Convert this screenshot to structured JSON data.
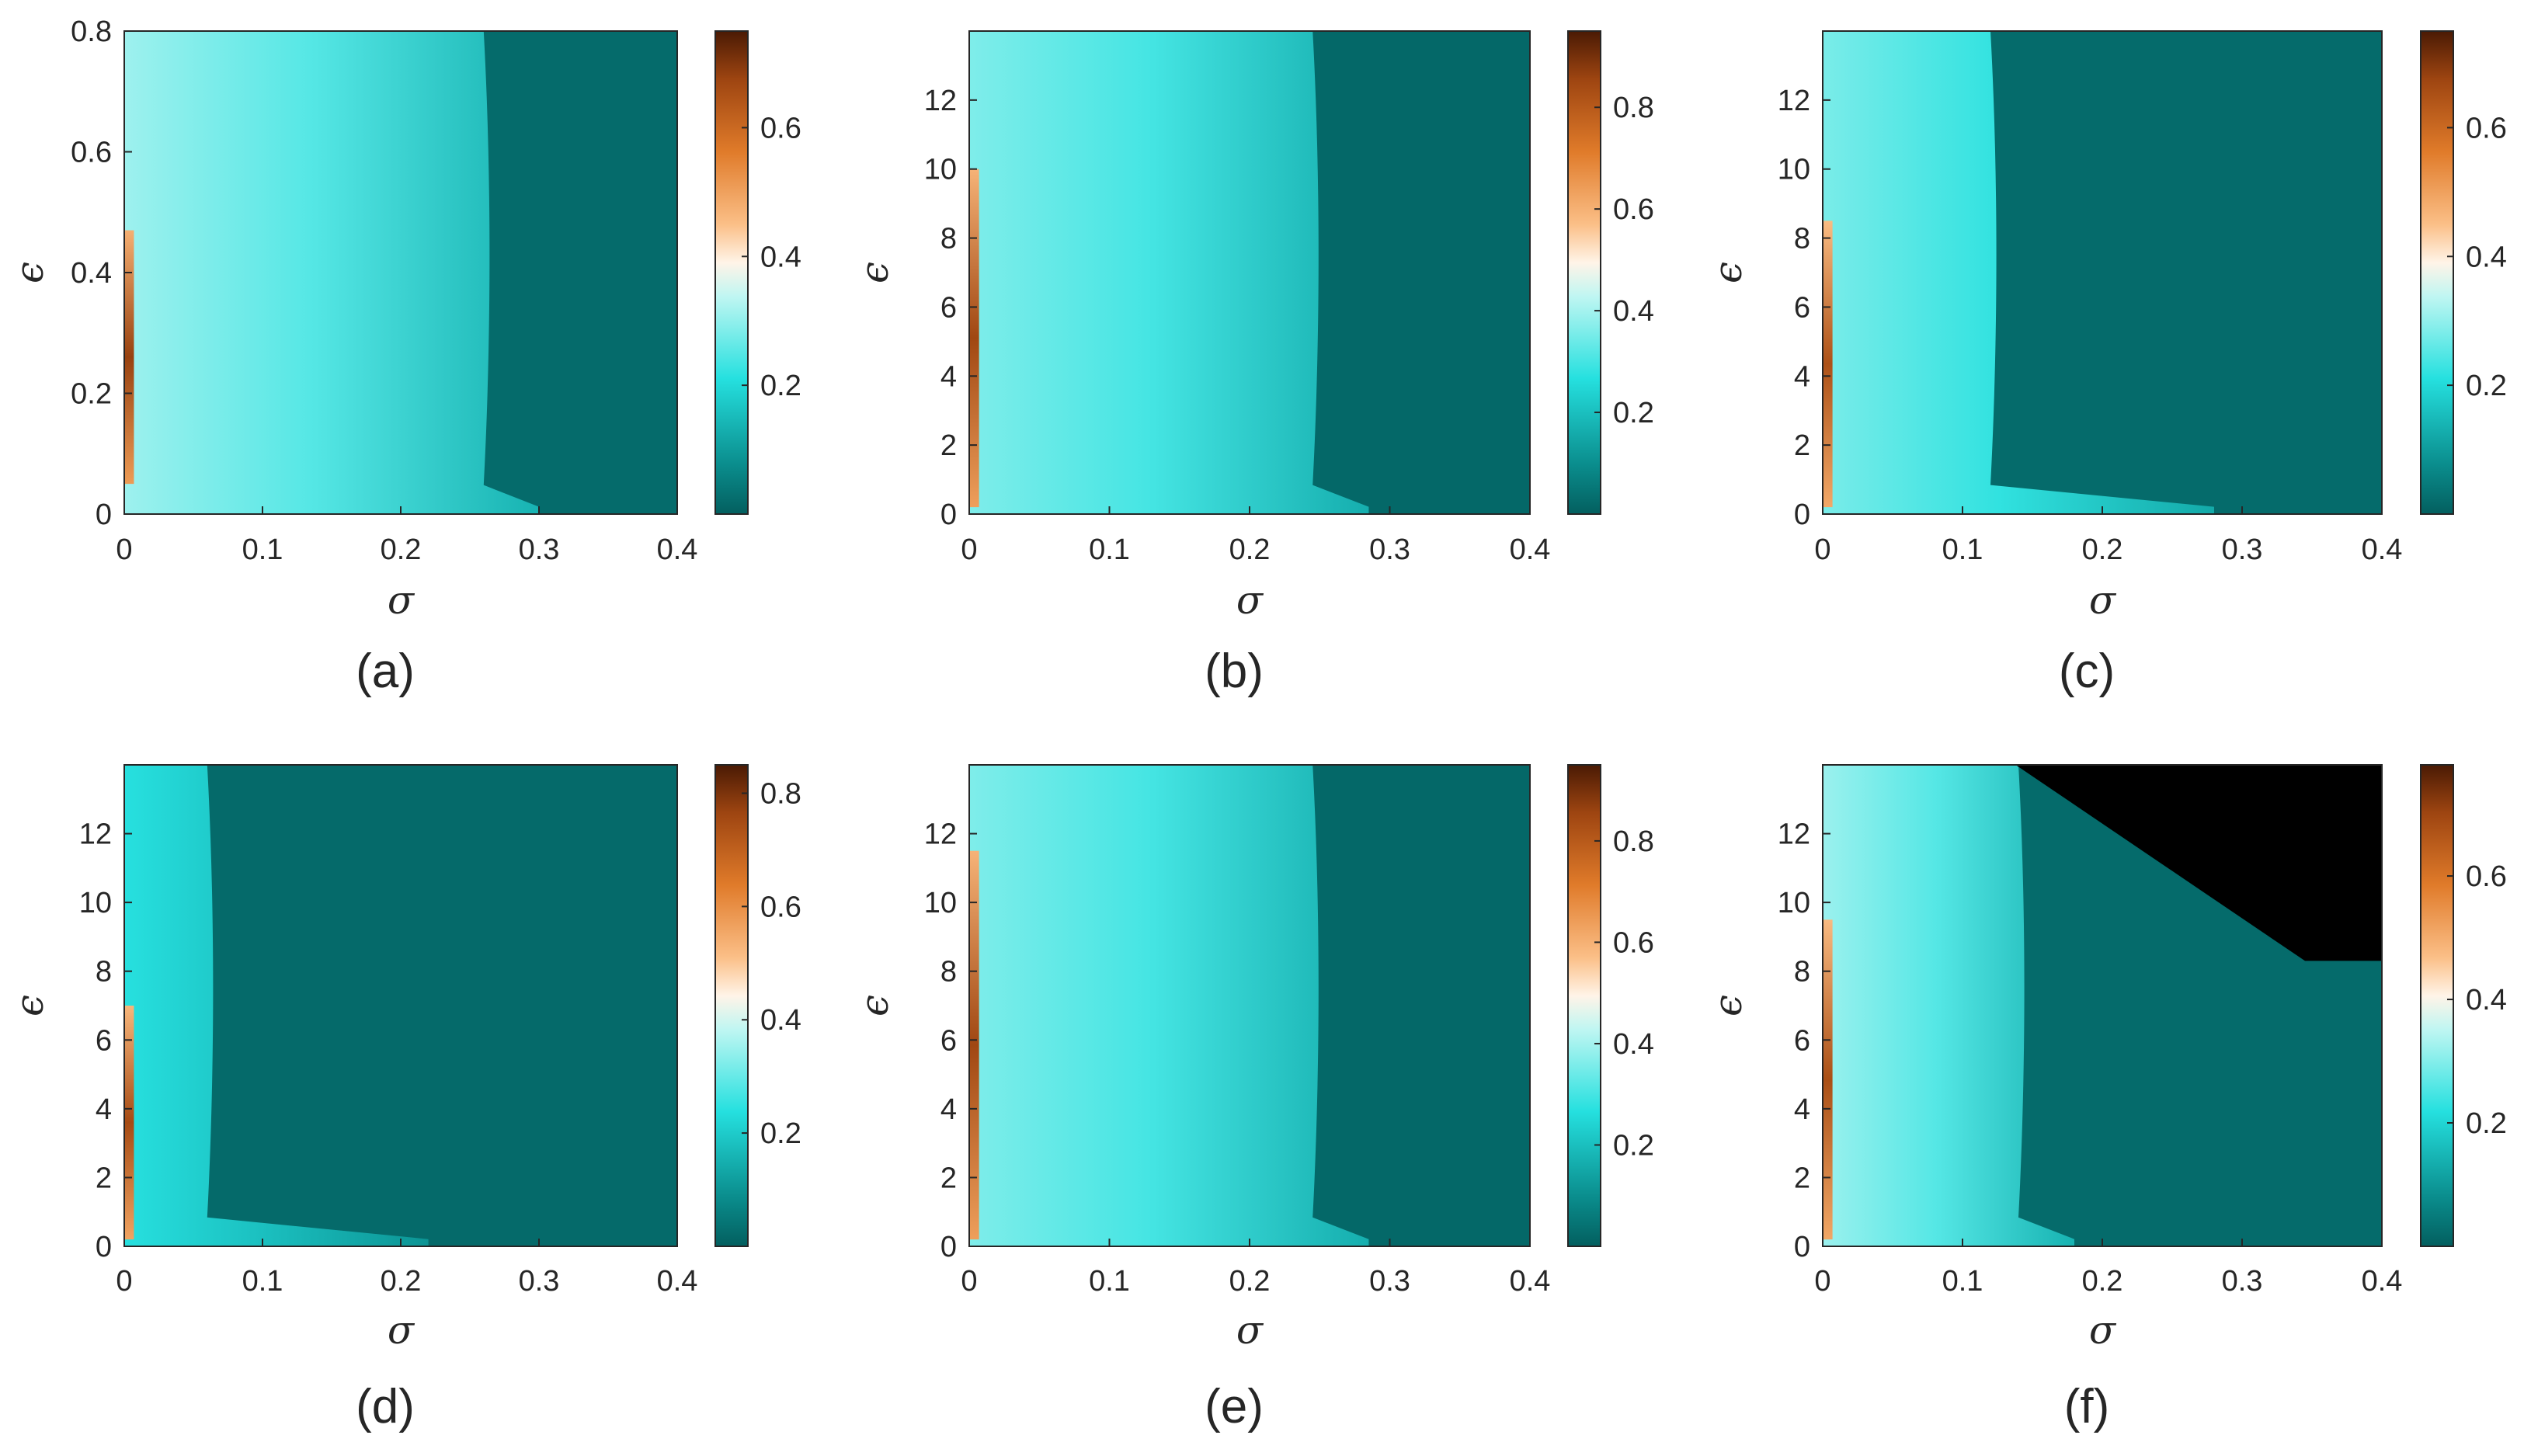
{
  "figure": {
    "background": "#ffffff"
  },
  "colormap": {
    "name": "teal-cyan-white-orange-brown",
    "stops": [
      [
        0.0,
        "#035f5f"
      ],
      [
        0.1,
        "#0a8c8c"
      ],
      [
        0.28,
        "#25e0df"
      ],
      [
        0.45,
        "#bff6f2"
      ],
      [
        0.52,
        "#fff4e8"
      ],
      [
        0.6,
        "#fbbf87"
      ],
      [
        0.75,
        "#e07b2a"
      ],
      [
        0.9,
        "#9e4511"
      ],
      [
        1.0,
        "#4a1a04"
      ]
    ],
    "background_value_color": "#035f5f",
    "nan_color": "#000000"
  },
  "chart_data": [
    {
      "id": "a",
      "type": "heatmap",
      "label": "(a)",
      "xlabel": "σ",
      "ylabel": "ϵ",
      "xlim": [
        0,
        0.4
      ],
      "ylim": [
        0,
        0.8
      ],
      "xticks": [
        0,
        0.1,
        0.2,
        0.3,
        0.4
      ],
      "xtick_labels": [
        "0",
        "0.1",
        "0.2",
        "0.3",
        "0.4"
      ],
      "yticks": [
        0,
        0.2,
        0.4,
        0.6,
        0.8
      ],
      "ytick_labels": [
        "0",
        "0.2",
        "0.4",
        "0.6",
        "0.8"
      ],
      "clim": [
        0,
        0.75
      ],
      "colorbar_ticks": [
        0.2,
        0.4,
        0.6
      ],
      "colorbar_tick_labels": [
        "0.2",
        "0.4",
        "0.6"
      ],
      "grid": false,
      "description_regions": {
        "left_edge_peak": {
          "sigma_max": 0.007,
          "eps_range": [
            0.05,
            0.47
          ],
          "value": 0.68
        },
        "sync_region_boundary_sigma": 0.26,
        "typical_value_in_region": 0.25,
        "value_outside_region": 0.02
      }
    },
    {
      "id": "b",
      "type": "heatmap",
      "label": "(b)",
      "xlabel": "σ",
      "ylabel": "ϵ",
      "xlim": [
        0,
        0.4
      ],
      "ylim": [
        0,
        14
      ],
      "xticks": [
        0,
        0.1,
        0.2,
        0.3,
        0.4
      ],
      "xtick_labels": [
        "0",
        "0.1",
        "0.2",
        "0.3",
        "0.4"
      ],
      "yticks": [
        0,
        2,
        4,
        6,
        8,
        10,
        12
      ],
      "ytick_labels": [
        "0",
        "2",
        "4",
        "6",
        "8",
        "10",
        "12"
      ],
      "clim": [
        0,
        0.95
      ],
      "colorbar_ticks": [
        0.2,
        0.4,
        0.6,
        0.8
      ],
      "colorbar_tick_labels": [
        "0.2",
        "0.4",
        "0.6",
        "0.8"
      ],
      "grid": false,
      "description_regions": {
        "left_edge_peak": {
          "sigma_max": 0.007,
          "eps_range": [
            0.2,
            10
          ],
          "value": 0.85
        },
        "sync_region_boundary_sigma": 0.245,
        "typical_value_in_region": 0.3,
        "value_outside_region": 0.02
      }
    },
    {
      "id": "c",
      "type": "heatmap",
      "label": "(c)",
      "xlabel": "σ",
      "ylabel": "ϵ",
      "xlim": [
        0,
        0.4
      ],
      "ylim": [
        0,
        14
      ],
      "xticks": [
        0,
        0.1,
        0.2,
        0.3,
        0.4
      ],
      "xtick_labels": [
        "0",
        "0.1",
        "0.2",
        "0.3",
        "0.4"
      ],
      "yticks": [
        0,
        2,
        4,
        6,
        8,
        10,
        12
      ],
      "ytick_labels": [
        "0",
        "2",
        "4",
        "6",
        "8",
        "10",
        "12"
      ],
      "clim": [
        0,
        0.75
      ],
      "colorbar_ticks": [
        0.2,
        0.4,
        0.6
      ],
      "colorbar_tick_labels": [
        "0.2",
        "0.4",
        "0.6"
      ],
      "grid": false,
      "description_regions": {
        "left_edge_peak": {
          "sigma_max": 0.007,
          "eps_range": [
            0.2,
            8.5
          ],
          "value": 0.65
        },
        "sync_region_boundary_sigma": 0.12,
        "typical_value_in_region": 0.22,
        "value_outside_region": 0.02
      }
    },
    {
      "id": "d",
      "type": "heatmap",
      "label": "(d)",
      "xlabel": "σ",
      "ylabel": "ϵ",
      "xlim": [
        0,
        0.4
      ],
      "ylim": [
        0,
        14
      ],
      "xticks": [
        0,
        0.1,
        0.2,
        0.3,
        0.4
      ],
      "xtick_labels": [
        "0",
        "0.1",
        "0.2",
        "0.3",
        "0.4"
      ],
      "yticks": [
        0,
        2,
        4,
        6,
        8,
        10,
        12
      ],
      "ytick_labels": [
        "0",
        "2",
        "4",
        "6",
        "8",
        "10",
        "12"
      ],
      "clim": [
        0,
        0.85
      ],
      "colorbar_ticks": [
        0.2,
        0.4,
        0.6,
        0.8
      ],
      "colorbar_tick_labels": [
        "0.2",
        "0.4",
        "0.6",
        "0.8"
      ],
      "grid": false,
      "description_regions": {
        "left_edge_peak": {
          "sigma_max": 0.007,
          "eps_range": [
            0.2,
            7
          ],
          "value": 0.75
        },
        "sync_region_boundary_sigma": 0.06,
        "typical_value_in_region": 0.18,
        "value_outside_region": 0.02
      }
    },
    {
      "id": "e",
      "type": "heatmap",
      "label": "(e)",
      "xlabel": "σ",
      "ylabel": "ϵ",
      "xlim": [
        0,
        0.4
      ],
      "ylim": [
        0,
        14
      ],
      "xticks": [
        0,
        0.1,
        0.2,
        0.3,
        0.4
      ],
      "xtick_labels": [
        "0",
        "0.1",
        "0.2",
        "0.3",
        "0.4"
      ],
      "yticks": [
        0,
        2,
        4,
        6,
        8,
        10,
        12
      ],
      "ytick_labels": [
        "0",
        "2",
        "4",
        "6",
        "8",
        "10",
        "12"
      ],
      "clim": [
        0,
        0.95
      ],
      "colorbar_ticks": [
        0.2,
        0.4,
        0.6,
        0.8
      ],
      "colorbar_tick_labels": [
        "0.2",
        "0.4",
        "0.6",
        "0.8"
      ],
      "grid": false,
      "description_regions": {
        "left_edge_peak": {
          "sigma_max": 0.007,
          "eps_range": [
            0.2,
            11.5
          ],
          "value": 0.85
        },
        "sync_region_boundary_sigma": 0.245,
        "typical_value_in_region": 0.3,
        "value_outside_region": 0.02
      }
    },
    {
      "id": "f",
      "type": "heatmap",
      "label": "(f)",
      "xlabel": "σ",
      "ylabel": "ϵ",
      "xlim": [
        0,
        0.4
      ],
      "ylim": [
        0,
        14
      ],
      "xticks": [
        0,
        0.1,
        0.2,
        0.3,
        0.4
      ],
      "xtick_labels": [
        "0",
        "0.1",
        "0.2",
        "0.3",
        "0.4"
      ],
      "yticks": [
        0,
        2,
        4,
        6,
        8,
        10,
        12
      ],
      "ytick_labels": [
        "0",
        "2",
        "4",
        "6",
        "8",
        "10",
        "12"
      ],
      "clim": [
        0,
        0.78
      ],
      "colorbar_ticks": [
        0.2,
        0.4,
        0.6
      ],
      "colorbar_tick_labels": [
        "0.2",
        "0.4",
        "0.6"
      ],
      "grid": false,
      "description_regions": {
        "left_edge_peak": {
          "sigma_max": 0.007,
          "eps_range": [
            0.2,
            9.5
          ],
          "value": 0.68
        },
        "sync_region_boundary_sigma": 0.14,
        "typical_value_in_region": 0.26,
        "value_outside_region": 0.02,
        "undefined_region": {
          "description": "black (no data) staircase region, upper right",
          "corner_points_sigma_eps": [
            [
              0.138,
              14
            ],
            [
              0.4,
              14
            ],
            [
              0.4,
              8.3
            ],
            [
              0.345,
              8.3
            ]
          ]
        }
      }
    }
  ]
}
